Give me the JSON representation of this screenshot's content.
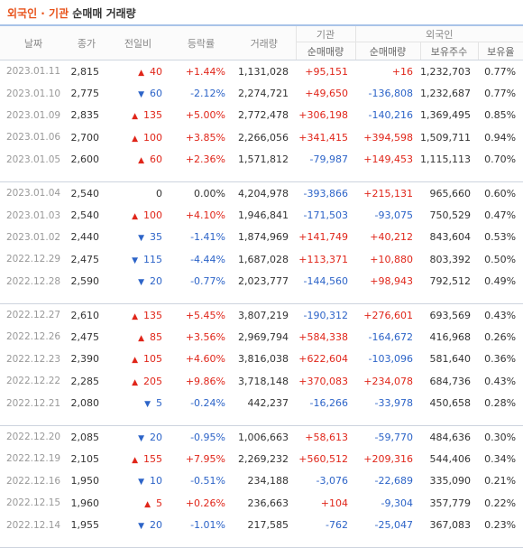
{
  "title": {
    "highlight": "외국인 · 기관",
    "rest": " 순매매 거래량"
  },
  "headers": {
    "date": "날짜",
    "close": "종가",
    "change": "전일비",
    "rate": "등락률",
    "volume": "거래량",
    "inst": "기관",
    "foreign": "외국인",
    "inst_net": "순매매량",
    "foreign_net": "순매매량",
    "foreign_hold": "보유주수",
    "foreign_ratio": "보유율"
  },
  "colors": {
    "up": "#e0261a",
    "down": "#2d64c8",
    "accent": "#e8541c"
  },
  "groups": [
    [
      {
        "date": "2023.01.11",
        "close": "2,815",
        "dir": "up",
        "change": "40",
        "rate": "+1.44%",
        "volume": "1,131,028",
        "inst": "+95,151",
        "foreign": "+16",
        "hold": "1,232,703",
        "ratio": "0.77%"
      },
      {
        "date": "2023.01.10",
        "close": "2,775",
        "dir": "down",
        "change": "60",
        "rate": "-2.12%",
        "volume": "2,274,721",
        "inst": "+49,650",
        "foreign": "-136,808",
        "hold": "1,232,687",
        "ratio": "0.77%"
      },
      {
        "date": "2023.01.09",
        "close": "2,835",
        "dir": "up",
        "change": "135",
        "rate": "+5.00%",
        "volume": "2,772,478",
        "inst": "+306,198",
        "foreign": "-140,216",
        "hold": "1,369,495",
        "ratio": "0.85%"
      },
      {
        "date": "2023.01.06",
        "close": "2,700",
        "dir": "up",
        "change": "100",
        "rate": "+3.85%",
        "volume": "2,266,056",
        "inst": "+341,415",
        "foreign": "+394,598",
        "hold": "1,509,711",
        "ratio": "0.94%"
      },
      {
        "date": "2023.01.05",
        "close": "2,600",
        "dir": "up",
        "change": "60",
        "rate": "+2.36%",
        "volume": "1,571,812",
        "inst": "-79,987",
        "foreign": "+149,453",
        "hold": "1,115,113",
        "ratio": "0.70%"
      }
    ],
    [
      {
        "date": "2023.01.04",
        "close": "2,540",
        "dir": "none",
        "change": "0",
        "rate": "0.00%",
        "volume": "4,204,978",
        "inst": "-393,866",
        "foreign": "+215,131",
        "hold": "965,660",
        "ratio": "0.60%"
      },
      {
        "date": "2023.01.03",
        "close": "2,540",
        "dir": "up",
        "change": "100",
        "rate": "+4.10%",
        "volume": "1,946,841",
        "inst": "-171,503",
        "foreign": "-93,075",
        "hold": "750,529",
        "ratio": "0.47%"
      },
      {
        "date": "2023.01.02",
        "close": "2,440",
        "dir": "down",
        "change": "35",
        "rate": "-1.41%",
        "volume": "1,874,969",
        "inst": "+141,749",
        "foreign": "+40,212",
        "hold": "843,604",
        "ratio": "0.53%"
      },
      {
        "date": "2022.12.29",
        "close": "2,475",
        "dir": "down",
        "change": "115",
        "rate": "-4.44%",
        "volume": "1,687,028",
        "inst": "+113,371",
        "foreign": "+10,880",
        "hold": "803,392",
        "ratio": "0.50%"
      },
      {
        "date": "2022.12.28",
        "close": "2,590",
        "dir": "down",
        "change": "20",
        "rate": "-0.77%",
        "volume": "2,023,777",
        "inst": "-144,560",
        "foreign": "+98,943",
        "hold": "792,512",
        "ratio": "0.49%"
      }
    ],
    [
      {
        "date": "2022.12.27",
        "close": "2,610",
        "dir": "up",
        "change": "135",
        "rate": "+5.45%",
        "volume": "3,807,219",
        "inst": "-190,312",
        "foreign": "+276,601",
        "hold": "693,569",
        "ratio": "0.43%"
      },
      {
        "date": "2022.12.26",
        "close": "2,475",
        "dir": "up",
        "change": "85",
        "rate": "+3.56%",
        "volume": "2,969,794",
        "inst": "+584,338",
        "foreign": "-164,672",
        "hold": "416,968",
        "ratio": "0.26%"
      },
      {
        "date": "2022.12.23",
        "close": "2,390",
        "dir": "up",
        "change": "105",
        "rate": "+4.60%",
        "volume": "3,816,038",
        "inst": "+622,604",
        "foreign": "-103,096",
        "hold": "581,640",
        "ratio": "0.36%"
      },
      {
        "date": "2022.12.22",
        "close": "2,285",
        "dir": "up",
        "change": "205",
        "rate": "+9.86%",
        "volume": "3,718,148",
        "inst": "+370,083",
        "foreign": "+234,078",
        "hold": "684,736",
        "ratio": "0.43%"
      },
      {
        "date": "2022.12.21",
        "close": "2,080",
        "dir": "down",
        "change": "5",
        "rate": "-0.24%",
        "volume": "442,237",
        "inst": "-16,266",
        "foreign": "-33,978",
        "hold": "450,658",
        "ratio": "0.28%"
      }
    ],
    [
      {
        "date": "2022.12.20",
        "close": "2,085",
        "dir": "down",
        "change": "20",
        "rate": "-0.95%",
        "volume": "1,006,663",
        "inst": "+58,613",
        "foreign": "-59,770",
        "hold": "484,636",
        "ratio": "0.30%"
      },
      {
        "date": "2022.12.19",
        "close": "2,105",
        "dir": "up",
        "change": "155",
        "rate": "+7.95%",
        "volume": "2,269,232",
        "inst": "+560,512",
        "foreign": "+209,316",
        "hold": "544,406",
        "ratio": "0.34%"
      },
      {
        "date": "2022.12.16",
        "close": "1,950",
        "dir": "down",
        "change": "10",
        "rate": "-0.51%",
        "volume": "234,188",
        "inst": "-3,076",
        "foreign": "-22,689",
        "hold": "335,090",
        "ratio": "0.21%"
      },
      {
        "date": "2022.12.15",
        "close": "1,960",
        "dir": "up",
        "change": "5",
        "rate": "+0.26%",
        "volume": "236,663",
        "inst": "+104",
        "foreign": "-9,304",
        "hold": "357,779",
        "ratio": "0.22%"
      },
      {
        "date": "2022.12.14",
        "close": "1,955",
        "dir": "down",
        "change": "20",
        "rate": "-1.01%",
        "volume": "217,585",
        "inst": "-762",
        "foreign": "-25,047",
        "hold": "367,083",
        "ratio": "0.23%"
      }
    ]
  ]
}
